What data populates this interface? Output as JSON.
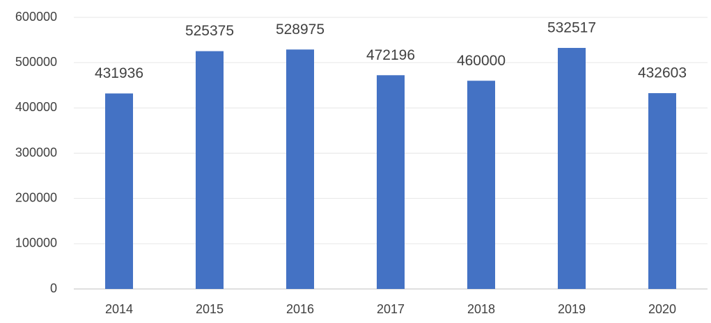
{
  "chart_data": {
    "type": "bar",
    "categories": [
      "2014",
      "2015",
      "2016",
      "2017",
      "2018",
      "2019",
      "2020"
    ],
    "values": [
      431936,
      525375,
      528975,
      472196,
      460000,
      532517,
      432603
    ],
    "color": "#4472c4",
    "ylim": [
      0,
      600000
    ],
    "yticks": [
      0,
      100000,
      200000,
      300000,
      400000,
      500000,
      600000
    ],
    "grid": true
  }
}
